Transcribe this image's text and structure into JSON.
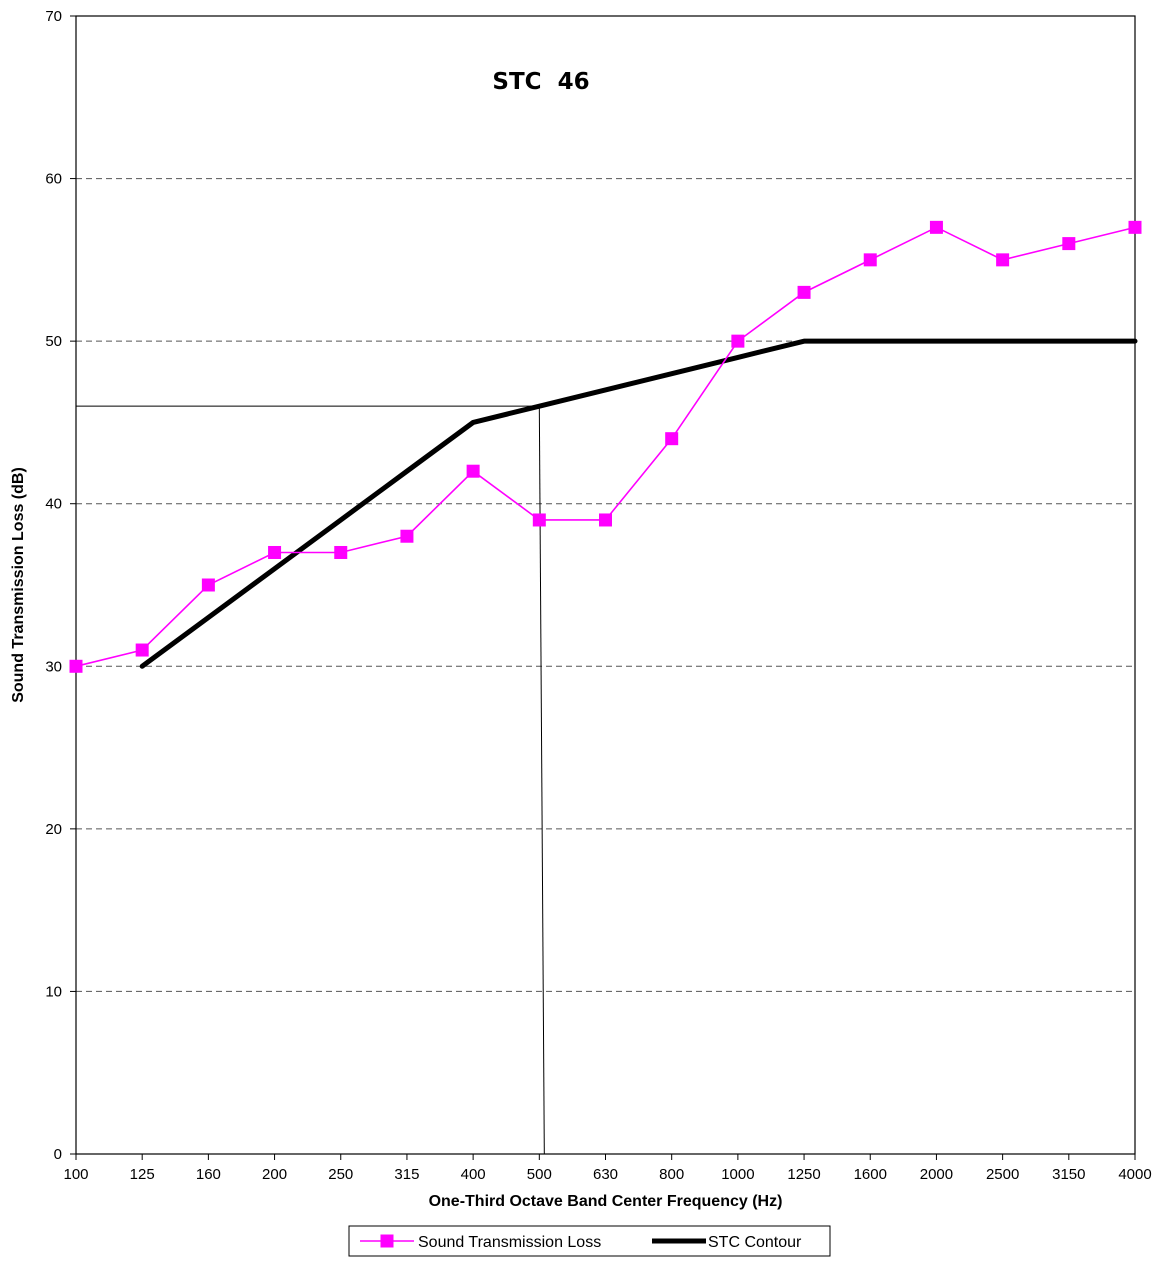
{
  "chart_data": {
    "type": "line",
    "annotation": {
      "label": "STC",
      "value": "46"
    },
    "xlabel": "One-Third Octave Band Center Frequency (Hz)",
    "ylabel": "Sound Transmission Loss (dB)",
    "categories": [
      "100",
      "125",
      "160",
      "200",
      "250",
      "315",
      "400",
      "500",
      "630",
      "800",
      "1000",
      "1250",
      "1600",
      "2000",
      "2500",
      "3150",
      "4000"
    ],
    "ylim": [
      0,
      70
    ],
    "yticks": [
      "0",
      "10",
      "20",
      "30",
      "40",
      "50",
      "60",
      "70"
    ],
    "grid": {
      "horizontal": true,
      "style": "dashed"
    },
    "legend_position": "bottom",
    "reference": {
      "value": 46,
      "category": "500"
    },
    "series": [
      {
        "name": "Sound Transmission Loss",
        "color": "#ff00ff",
        "marker": "square",
        "values": [
          30,
          31,
          35,
          37,
          37,
          38,
          42,
          39,
          39,
          44,
          50,
          53,
          55,
          57,
          55,
          56,
          57
        ]
      },
      {
        "name": "STC Contour",
        "color": "#000000",
        "marker": "none",
        "values": [
          null,
          30,
          33,
          36,
          39,
          42,
          45,
          46,
          47,
          48,
          49,
          50,
          50,
          50,
          50,
          50,
          50
        ]
      }
    ]
  }
}
